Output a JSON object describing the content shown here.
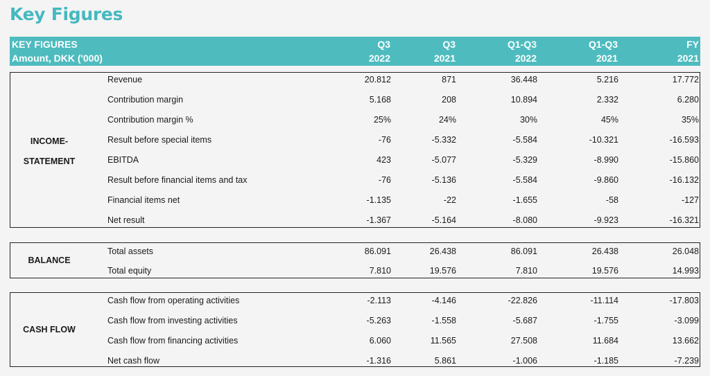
{
  "title": "Key Figures",
  "header": {
    "line1": "KEY FIGURES",
    "line2": "Amount, DKK ('000)",
    "columns": [
      {
        "top": "Q3",
        "bottom": "2022"
      },
      {
        "top": "Q3",
        "bottom": "2021"
      },
      {
        "top": "Q1-Q3",
        "bottom": "2022"
      },
      {
        "top": "Q1-Q3",
        "bottom": "2021"
      },
      {
        "top": "FY",
        "bottom": "2021"
      }
    ]
  },
  "sections": [
    {
      "label_lines": [
        "INCOME-",
        "STATEMENT"
      ],
      "rows": [
        {
          "label": "Revenue",
          "values": [
            "20.812",
            "871",
            "36.448",
            "5.216",
            "17.772"
          ]
        },
        {
          "label": "Contribution margin",
          "values": [
            "5.168",
            "208",
            "10.894",
            "2.332",
            "6.280"
          ]
        },
        {
          "label": "Contribution margin %",
          "values": [
            "25%",
            "24%",
            "30%",
            "45%",
            "35%"
          ]
        },
        {
          "label": "Result before special items",
          "values": [
            "-76",
            "-5.332",
            "-5.584",
            "-10.321",
            "-16.593"
          ]
        },
        {
          "label": "EBITDA",
          "values": [
            "423",
            "-5.077",
            "-5.329",
            "-8.990",
            "-15.860"
          ]
        },
        {
          "label": "Result before financial items and tax",
          "values": [
            "-76",
            "-5.136",
            "-5.584",
            "-9.860",
            "-16.132"
          ]
        },
        {
          "label": "Financial items net",
          "values": [
            "-1.135",
            "-22",
            "-1.655",
            "-58",
            "-127"
          ]
        },
        {
          "label": "Net result",
          "values": [
            "-1.367",
            "-5.164",
            "-8.080",
            "-9.923",
            "-16.321"
          ]
        }
      ]
    },
    {
      "label_lines": [
        "BALANCE"
      ],
      "rows": [
        {
          "label": "Total assets",
          "values": [
            "86.091",
            "26.438",
            "86.091",
            "26.438",
            "26.048"
          ]
        },
        {
          "label": "Total equity",
          "values": [
            "7.810",
            "19.576",
            "7.810",
            "19.576",
            "14.993"
          ]
        }
      ]
    },
    {
      "label_lines": [
        "CASH FLOW"
      ],
      "rows": [
        {
          "label": "Cash flow from operating activities",
          "values": [
            "-2.113",
            "-4.146",
            "-22.826",
            "-11.114",
            "-17.803"
          ]
        },
        {
          "label": "Cash flow from investing activities",
          "values": [
            "-5.263",
            "-1.558",
            "-5.687",
            "-1.755",
            "-3.099"
          ]
        },
        {
          "label": "Cash flow from financing activities",
          "values": [
            "6.060",
            "11.565",
            "27.508",
            "11.684",
            "13.662"
          ]
        },
        {
          "label": "Net cash flow",
          "values": [
            "-1.316",
            "5.861",
            "-1.006",
            "-1.185",
            "-7.239"
          ]
        }
      ]
    }
  ]
}
